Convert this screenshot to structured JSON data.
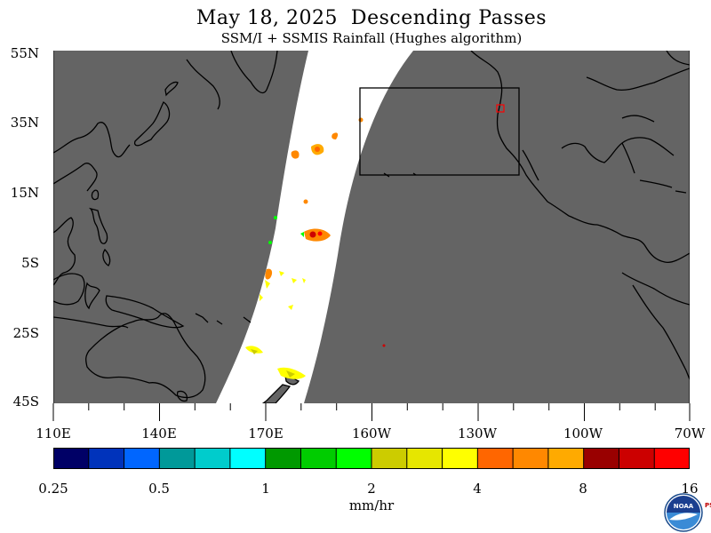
{
  "title": "May 18, 2025  Descending Passes",
  "subtitle": "SSM/I + SSMIS Rainfall (Hughes algorithm)",
  "map": {
    "lat_labels": [
      "55N",
      "35N",
      "15N",
      "5S",
      "25S",
      "45S"
    ],
    "lon_labels": [
      "110E",
      "140E",
      "170E",
      "160W",
      "130W",
      "100W",
      "70W"
    ],
    "no_data_color": "#646464",
    "swath_color": "#ffffff",
    "coastline_color": "#000000",
    "highlight_box_color": "#000000",
    "marker_color": "#ff0000"
  },
  "colorbar": {
    "colors": [
      "#000066",
      "#0033bb",
      "#0066ff",
      "#009999",
      "#00cccc",
      "#00ffff",
      "#009900",
      "#00cc00",
      "#00ff00",
      "#cccc00",
      "#e6e600",
      "#ffff00",
      "#ff6600",
      "#ff8800",
      "#ffaa00",
      "#990000",
      "#cc0000",
      "#ff0000"
    ],
    "tick_labels": [
      "0.25",
      "0.5",
      "1",
      "2",
      "4",
      "8",
      "16"
    ],
    "units": "mm/hr"
  },
  "logo_text": "NOAA",
  "logo_side_text": "PSL"
}
